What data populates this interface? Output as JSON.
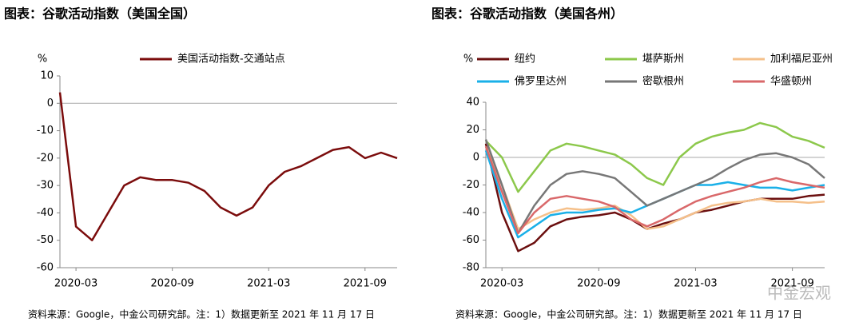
{
  "chart_data": [
    {
      "type": "line",
      "title": "图表：谷歌活动指数（美国全国）",
      "ylabel": "%",
      "source": "资料来源：Google，中金公司研究部。注：1）数据更新至 2021 年 11 月 17 日",
      "x": [
        "2020-02",
        "2020-03",
        "2020-04",
        "2020-05",
        "2020-06",
        "2020-07",
        "2020-08",
        "2020-09",
        "2020-10",
        "2020-11",
        "2020-12",
        "2021-01",
        "2021-02",
        "2021-03",
        "2021-04",
        "2021-05",
        "2021-06",
        "2021-07",
        "2021-08",
        "2021-09",
        "2021-10",
        "2021-11"
      ],
      "xlim": [
        "2020-02",
        "2021-11"
      ],
      "xticks": [
        "2020-03",
        "2020-09",
        "2021-03",
        "2021-09"
      ],
      "ylim": [
        -60,
        10
      ],
      "yticks": [
        -60,
        -50,
        -40,
        -30,
        -20,
        -10,
        0,
        10
      ],
      "series": [
        {
          "name": "美国活动指数-交通站点",
          "color": "#7b0c0c",
          "values": [
            4,
            -45,
            -50,
            -40,
            -30,
            -27,
            -28,
            -28,
            -29,
            -32,
            -38,
            -41,
            -38,
            -30,
            -25,
            -23,
            -20,
            -17,
            -16,
            -20,
            -18,
            -20
          ]
        }
      ]
    },
    {
      "type": "line",
      "title": "图表：谷歌活动指数（美国各州）",
      "ylabel": "%",
      "source": "资料来源：Google，中金公司研究部。注：1）数据更新至 2021 年 11 月 17 日",
      "x": [
        "2020-02",
        "2020-03",
        "2020-04",
        "2020-05",
        "2020-06",
        "2020-07",
        "2020-08",
        "2020-09",
        "2020-10",
        "2020-11",
        "2020-12",
        "2021-01",
        "2021-02",
        "2021-03",
        "2021-04",
        "2021-05",
        "2021-06",
        "2021-07",
        "2021-08",
        "2021-09",
        "2021-10",
        "2021-11"
      ],
      "xlim": [
        "2020-02",
        "2021-11"
      ],
      "xticks": [
        "2020-03",
        "2020-09",
        "2021-03",
        "2021-09"
      ],
      "ylim": [
        -80,
        40
      ],
      "yticks": [
        -80,
        -60,
        -40,
        -20,
        0,
        20,
        40
      ],
      "series": [
        {
          "name": "纽约",
          "color": "#6b0f0f",
          "values": [
            10,
            -40,
            -68,
            -62,
            -50,
            -45,
            -43,
            -42,
            -40,
            -45,
            -52,
            -48,
            -45,
            -40,
            -38,
            -35,
            -32,
            -30,
            -30,
            -30,
            -28,
            -27
          ]
        },
        {
          "name": "堪萨斯州",
          "color": "#8cc84b",
          "values": [
            12,
            0,
            -25,
            -10,
            5,
            10,
            8,
            5,
            2,
            -5,
            -15,
            -20,
            0,
            10,
            15,
            18,
            20,
            25,
            22,
            15,
            12,
            7
          ]
        },
        {
          "name": "加利福尼亚州",
          "color": "#f5c08a",
          "values": [
            8,
            -20,
            -52,
            -45,
            -40,
            -37,
            -38,
            -37,
            -35,
            -42,
            -52,
            -50,
            -45,
            -40,
            -35,
            -33,
            -32,
            -30,
            -32,
            -32,
            -33,
            -32
          ]
        },
        {
          "name": "佛罗里达州",
          "color": "#1ab0e8",
          "values": [
            5,
            -30,
            -58,
            -50,
            -42,
            -40,
            -40,
            -38,
            -37,
            -40,
            -35,
            -30,
            -25,
            -20,
            -20,
            -18,
            -20,
            -22,
            -22,
            -24,
            -22,
            -20
          ]
        },
        {
          "name": "密歇根州",
          "color": "#777777",
          "values": [
            13,
            -20,
            -55,
            -35,
            -20,
            -12,
            -10,
            -12,
            -15,
            -25,
            -35,
            -30,
            -25,
            -20,
            -15,
            -8,
            -2,
            2,
            3,
            0,
            -5,
            -15
          ]
        },
        {
          "name": "华盛顿州",
          "color": "#d9686a",
          "values": [
            8,
            -25,
            -55,
            -40,
            -30,
            -28,
            -30,
            -32,
            -36,
            -45,
            -50,
            -45,
            -38,
            -32,
            -28,
            -25,
            -22,
            -18,
            -15,
            -18,
            -20,
            -22
          ]
        }
      ]
    }
  ],
  "watermark": "中金宏观"
}
